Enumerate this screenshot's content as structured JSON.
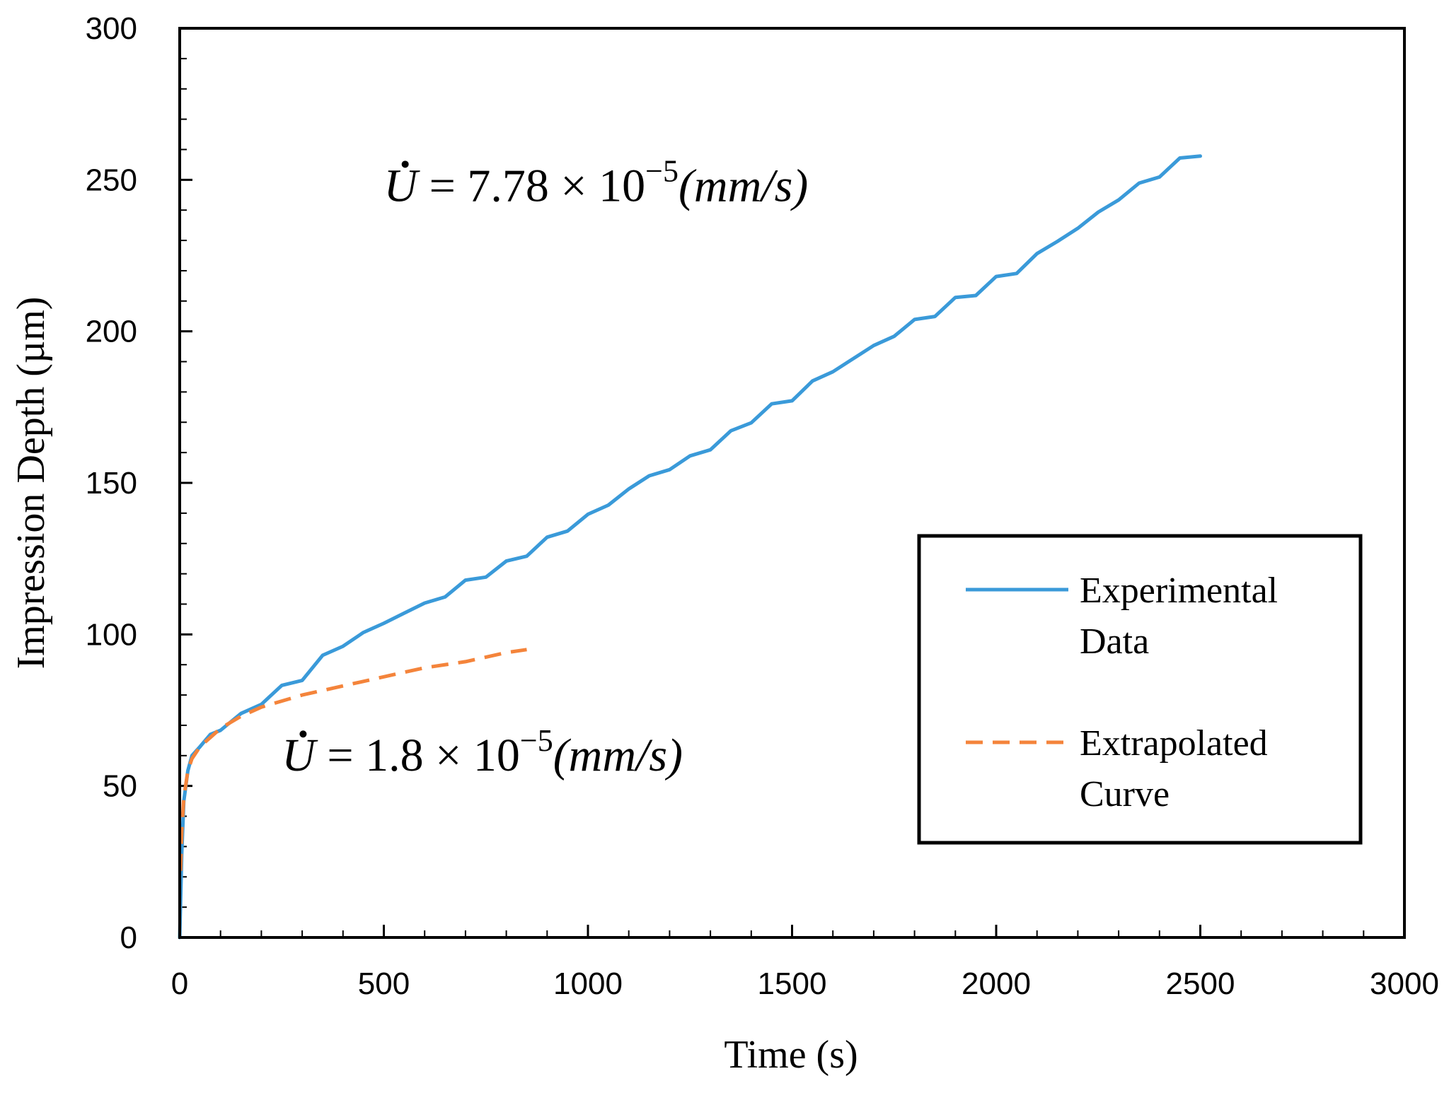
{
  "chart_data": {
    "type": "line",
    "title": "",
    "xlabel": "Time (s)",
    "ylabel": "Impression Depth (µm)",
    "xlim": [
      0,
      3000
    ],
    "ylim": [
      0,
      300
    ],
    "xticks": [
      0,
      500,
      1000,
      1500,
      2000,
      2500,
      3000
    ],
    "yticks": [
      0,
      50,
      100,
      150,
      200,
      250,
      300
    ],
    "x_tick_labels": [
      "0",
      "500",
      "1000",
      "1500",
      "2000",
      "2500",
      "3000"
    ],
    "y_tick_labels": [
      "0",
      "50",
      "100",
      "150",
      "200",
      "250",
      "300"
    ],
    "x_minor_step": 100,
    "y_minor_step": 10,
    "grid": false,
    "legend_position": "right",
    "series": [
      {
        "name": "Experimental Data",
        "legend_lines": [
          "Experimental",
          "Data"
        ],
        "color": "#3a9ad9",
        "style": "solid",
        "x": [
          0,
          5,
          10,
          20,
          30,
          50,
          75,
          100,
          150,
          200,
          250,
          300,
          350,
          400,
          450,
          500,
          550,
          600,
          650,
          700,
          750,
          800,
          850,
          900,
          950,
          1000,
          1050,
          1100,
          1150,
          1200,
          1250,
          1300,
          1350,
          1400,
          1450,
          1500,
          1550,
          1600,
          1650,
          1700,
          1750,
          1800,
          1850,
          1900,
          1950,
          2000,
          2050,
          2100,
          2150,
          2200,
          2250,
          2300,
          2350,
          2400,
          2450,
          2500
        ],
        "y": [
          0,
          28,
          45,
          55,
          60,
          63,
          67,
          69,
          73,
          78,
          82,
          86,
          92,
          97,
          100,
          104,
          107,
          110,
          113,
          117,
          120,
          123,
          127,
          131,
          135,
          139,
          143,
          148,
          152,
          155,
          158,
          162,
          166,
          171,
          175,
          178,
          183,
          187,
          191,
          195,
          199,
          203,
          206,
          210,
          213,
          217,
          220,
          225,
          230,
          234,
          239,
          244,
          248,
          252,
          256,
          259
        ]
      },
      {
        "name": "Extrapolated Curve",
        "legend_lines": [
          "Extrapolated",
          "Curve"
        ],
        "color": "#f4843b",
        "style": "dashed",
        "x": [
          2,
          5,
          10,
          20,
          30,
          50,
          75,
          100,
          150,
          200,
          250,
          300,
          400,
          500,
          600,
          700,
          800,
          850
        ],
        "y": [
          22,
          35,
          46,
          55,
          59,
          63,
          66,
          69,
          73,
          76,
          78,
          80,
          83,
          86,
          89,
          91,
          94,
          95
        ]
      }
    ],
    "annotations": [
      {
        "id": "eq1",
        "var": "U",
        "text": " = 7.78 × 10",
        "exp": "−5",
        "units": "(mm/s)",
        "anchor_x": 500,
        "anchor_y": 243
      },
      {
        "id": "eq2",
        "var": "U",
        "text": " = 1.8 × 10",
        "exp": "−5",
        "units": "(mm/s)",
        "anchor_x": 250,
        "anchor_y": 55
      }
    ]
  }
}
